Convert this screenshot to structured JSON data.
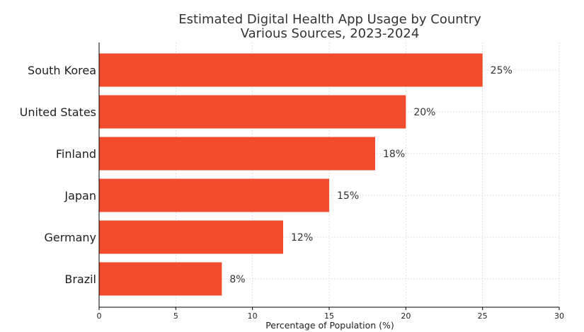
{
  "chart_data": {
    "type": "bar",
    "orientation": "horizontal",
    "title": "Estimated Digital Health App Usage by Country",
    "subtitle": "Various Sources, 2023-2024",
    "xlabel": "Percentage of Population (%)",
    "ylabel": "",
    "categories": [
      "South Korea",
      "United States",
      "Finland",
      "Japan",
      "Germany",
      "Brazil"
    ],
    "values": [
      25,
      20,
      18,
      15,
      12,
      8
    ],
    "data_labels": [
      "25%",
      "20%",
      "18%",
      "15%",
      "12%",
      "8%"
    ],
    "xlim": [
      0,
      30
    ],
    "xticks": [
      0,
      5,
      10,
      15,
      20,
      25,
      30
    ],
    "xtick_labels": [
      "0",
      "5",
      "10",
      "15",
      "20",
      "25",
      "30"
    ],
    "bar_color": "#f24c2e",
    "grid": true,
    "legend": "none"
  }
}
